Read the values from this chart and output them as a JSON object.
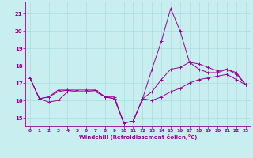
{
  "xlabel": "Windchill (Refroidissement éolien,°C)",
  "xlim": [
    -0.5,
    23.5
  ],
  "ylim": [
    14.5,
    21.7
  ],
  "yticks": [
    15,
    16,
    17,
    18,
    19,
    20,
    21
  ],
  "xticks": [
    0,
    1,
    2,
    3,
    4,
    5,
    6,
    7,
    8,
    9,
    10,
    11,
    12,
    13,
    14,
    15,
    16,
    17,
    18,
    19,
    20,
    21,
    22,
    23
  ],
  "background_color": "#c8eef0",
  "line_color": "#990099",
  "grid_color": "#aadddd",
  "line1_y": [
    17.3,
    16.1,
    16.2,
    16.6,
    16.6,
    16.6,
    16.6,
    16.6,
    16.2,
    16.2,
    14.7,
    14.8,
    16.1,
    17.8,
    19.4,
    21.3,
    20.0,
    18.2,
    17.8,
    17.6,
    17.6,
    17.8,
    17.5,
    16.9
  ],
  "line2_y": [
    17.3,
    16.1,
    16.2,
    16.5,
    16.6,
    16.5,
    16.5,
    16.5,
    16.2,
    16.1,
    14.7,
    14.8,
    16.1,
    16.5,
    17.2,
    17.8,
    17.9,
    18.2,
    18.1,
    17.9,
    17.7,
    17.8,
    17.6,
    16.9
  ],
  "line3_y": [
    17.3,
    16.1,
    15.9,
    16.0,
    16.5,
    16.5,
    16.5,
    16.6,
    16.2,
    16.1,
    14.7,
    14.8,
    16.1,
    16.0,
    16.2,
    16.5,
    16.7,
    17.0,
    17.2,
    17.3,
    17.4,
    17.5,
    17.2,
    16.9
  ]
}
